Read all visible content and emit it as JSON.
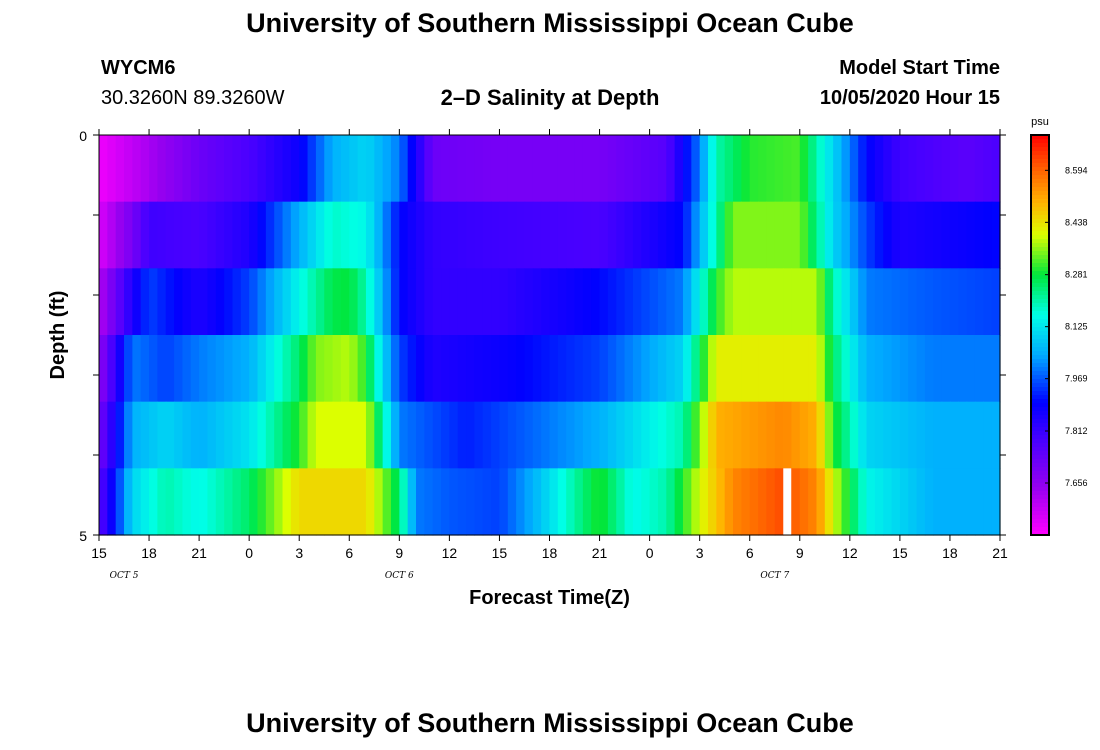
{
  "header": {
    "title": "University of Southern Mississippi Ocean Cube",
    "station": "WYCM6",
    "coords": "30.3260N 89.3260W",
    "chart_title": "2–D Salinity at Depth",
    "model_label": "Model Start Time",
    "model_time": "10/05/2020 Hour 15"
  },
  "footer": {
    "title": "University of Southern Mississippi Ocean Cube"
  },
  "chart_data": {
    "type": "heatmap",
    "title": "2–D Salinity at Depth",
    "xlabel": "Forecast Time(Z)",
    "ylabel": "Depth (ft)",
    "x_ticks": [
      "15",
      "18",
      "21",
      "0",
      "3",
      "6",
      "9",
      "12",
      "15",
      "18",
      "21",
      "0",
      "3",
      "6",
      "9",
      "12",
      "15",
      "18",
      "21"
    ],
    "date_labels": [
      {
        "label": "OCT 5",
        "at_hour": 1.5
      },
      {
        "label": "OCT 6",
        "at_hour": 18
      },
      {
        "label": "OCT 7",
        "at_hour": 40.5
      }
    ],
    "x_range_hours": [
      0,
      54
    ],
    "y_ticks": [
      "0",
      "5"
    ],
    "y_range": [
      0,
      5
    ],
    "colorbar": {
      "unit": "psu",
      "min": 7.5,
      "max": 8.7,
      "tick_values": [
        "8.594",
        "8.438",
        "8.281",
        "8.125",
        "7.969",
        "7.812",
        "7.656"
      ]
    },
    "missing": [
      {
        "hour": 41.25,
        "level": 5
      }
    ],
    "levels": [
      {
        "name": "level 1",
        "knots": [
          [
            0,
            7.52
          ],
          [
            3,
            7.62
          ],
          [
            6,
            7.72
          ],
          [
            9,
            7.78
          ],
          [
            12,
            7.88
          ],
          [
            14,
            8.05
          ],
          [
            16,
            8.1
          ],
          [
            18,
            8.0
          ],
          [
            20,
            7.72
          ],
          [
            24,
            7.7
          ],
          [
            30,
            7.7
          ],
          [
            34,
            7.76
          ],
          [
            36,
            8.0
          ],
          [
            37,
            8.2
          ],
          [
            39,
            8.3
          ],
          [
            42,
            8.32
          ],
          [
            43,
            8.2
          ],
          [
            44,
            8.1
          ],
          [
            46,
            7.9
          ],
          [
            48,
            7.8
          ],
          [
            52,
            7.75
          ],
          [
            54,
            7.78
          ]
        ]
      },
      {
        "name": "level 2",
        "knots": [
          [
            0,
            7.55
          ],
          [
            2,
            7.7
          ],
          [
            3,
            7.8
          ],
          [
            6,
            7.78
          ],
          [
            9,
            7.85
          ],
          [
            12,
            8.05
          ],
          [
            14,
            8.18
          ],
          [
            16,
            8.15
          ],
          [
            18,
            7.9
          ],
          [
            20,
            7.82
          ],
          [
            24,
            7.8
          ],
          [
            30,
            7.78
          ],
          [
            35,
            7.9
          ],
          [
            37,
            8.2
          ],
          [
            38,
            8.35
          ],
          [
            42,
            8.35
          ],
          [
            44,
            8.1
          ],
          [
            46,
            7.95
          ],
          [
            48,
            7.85
          ],
          [
            54,
            7.9
          ]
        ]
      },
      {
        "name": "level 3",
        "knots": [
          [
            0,
            7.6
          ],
          [
            2,
            7.85
          ],
          [
            3,
            7.95
          ],
          [
            6,
            7.85
          ],
          [
            9,
            7.95
          ],
          [
            12,
            8.15
          ],
          [
            14,
            8.27
          ],
          [
            15,
            8.28
          ],
          [
            16,
            8.2
          ],
          [
            18,
            7.9
          ],
          [
            20,
            7.82
          ],
          [
            24,
            7.82
          ],
          [
            30,
            7.9
          ],
          [
            35,
            8.0
          ],
          [
            37,
            8.3
          ],
          [
            38,
            8.38
          ],
          [
            43,
            8.38
          ],
          [
            44,
            8.2
          ],
          [
            46,
            8.0
          ],
          [
            50,
            7.97
          ],
          [
            54,
            7.95
          ]
        ]
      },
      {
        "name": "level 4",
        "knots": [
          [
            0,
            7.65
          ],
          [
            2,
            8.0
          ],
          [
            4,
            7.95
          ],
          [
            6,
            8.0
          ],
          [
            9,
            8.05
          ],
          [
            12,
            8.25
          ],
          [
            13,
            8.35
          ],
          [
            15,
            8.38
          ],
          [
            16,
            8.3
          ],
          [
            17,
            8.1
          ],
          [
            18,
            7.95
          ],
          [
            20,
            7.85
          ],
          [
            24,
            7.88
          ],
          [
            30,
            7.95
          ],
          [
            35,
            8.1
          ],
          [
            37,
            8.42
          ],
          [
            43,
            8.42
          ],
          [
            44,
            8.25
          ],
          [
            46,
            8.05
          ],
          [
            50,
            8.0
          ],
          [
            54,
            8.0
          ]
        ]
      },
      {
        "name": "level 5",
        "knots": [
          [
            0,
            7.7
          ],
          [
            2,
            8.05
          ],
          [
            4,
            8.1
          ],
          [
            6,
            8.05
          ],
          [
            9,
            8.12
          ],
          [
            12,
            8.3
          ],
          [
            13,
            8.4
          ],
          [
            16,
            8.4
          ],
          [
            17,
            8.2
          ],
          [
            18,
            8.0
          ],
          [
            22,
            7.92
          ],
          [
            24,
            7.95
          ],
          [
            30,
            8.05
          ],
          [
            35,
            8.2
          ],
          [
            37,
            8.5
          ],
          [
            41,
            8.55
          ],
          [
            43,
            8.5
          ],
          [
            44,
            8.3
          ],
          [
            46,
            8.1
          ],
          [
            50,
            8.05
          ],
          [
            54,
            8.05
          ]
        ]
      },
      {
        "name": "level 6",
        "knots": [
          [
            0,
            7.75
          ],
          [
            2,
            8.1
          ],
          [
            4,
            8.2
          ],
          [
            6,
            8.15
          ],
          [
            9,
            8.25
          ],
          [
            12,
            8.45
          ],
          [
            16,
            8.45
          ],
          [
            18,
            8.25
          ],
          [
            19,
            8.0
          ],
          [
            21,
            7.97
          ],
          [
            24,
            7.95
          ],
          [
            26,
            8.05
          ],
          [
            30,
            8.3
          ],
          [
            32,
            8.15
          ],
          [
            34,
            8.2
          ],
          [
            36,
            8.4
          ],
          [
            38,
            8.55
          ],
          [
            41,
            8.62
          ],
          [
            43,
            8.55
          ],
          [
            44,
            8.4
          ],
          [
            46,
            8.15
          ],
          [
            50,
            8.05
          ],
          [
            54,
            8.05
          ]
        ]
      }
    ]
  }
}
